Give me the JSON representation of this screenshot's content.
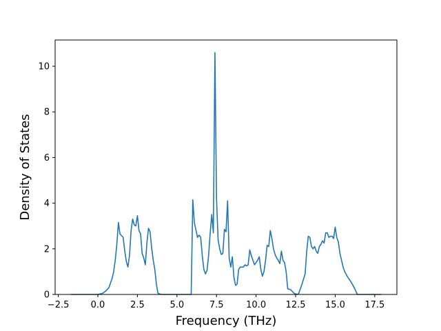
{
  "chart_data": {
    "type": "line",
    "title": "",
    "xlabel": "Frequency (THz)",
    "ylabel": "Density of States",
    "xlim": [
      -2.7,
      18.9
    ],
    "ylim": [
      0,
      11.15
    ],
    "grid": false,
    "legend": "none",
    "x_ticks": [
      -2.5,
      0.0,
      2.5,
      5.0,
      7.5,
      10.0,
      12.5,
      15.0,
      17.5
    ],
    "x_tick_labels": [
      "−2.5",
      "0.0",
      "2.5",
      "5.0",
      "7.5",
      "10.0",
      "12.5",
      "15.0",
      "17.5"
    ],
    "y_ticks": [
      0,
      2,
      4,
      6,
      8,
      10
    ],
    "y_tick_labels": [
      "0",
      "2",
      "4",
      "6",
      "8",
      "10"
    ],
    "series": [
      {
        "name": "",
        "color": "#1f77b4",
        "x": [
          -1.7,
          -0.4,
          0.0,
          0.3,
          0.5,
          0.7,
          0.9,
          1.0,
          1.1,
          1.2,
          1.3,
          1.4,
          1.6,
          1.7,
          1.8,
          1.9,
          2.0,
          2.1,
          2.2,
          2.3,
          2.4,
          2.5,
          2.6,
          2.7,
          2.8,
          2.9,
          3.0,
          3.1,
          3.2,
          3.3,
          3.4,
          3.5,
          3.6,
          3.7,
          3.8,
          4.0,
          5.9,
          6.0,
          6.1,
          6.3,
          6.4,
          6.5,
          6.6,
          6.7,
          6.8,
          6.9,
          7.0,
          7.1,
          7.2,
          7.3,
          7.4,
          7.5,
          7.6,
          7.7,
          7.8,
          7.9,
          8.0,
          8.1,
          8.2,
          8.3,
          8.4,
          8.5,
          8.6,
          8.7,
          8.8,
          8.9,
          9.0,
          9.1,
          9.2,
          9.3,
          9.4,
          9.5,
          9.6,
          9.7,
          9.8,
          9.9,
          10.0,
          10.1,
          10.2,
          10.3,
          10.4,
          10.5,
          10.6,
          10.7,
          10.8,
          10.9,
          11.0,
          11.1,
          11.2,
          11.3,
          11.4,
          11.5,
          11.6,
          11.7,
          11.8,
          11.9,
          12.0,
          12.2,
          12.4,
          12.6,
          12.7,
          12.9,
          13.1,
          13.2,
          13.3,
          13.4,
          13.5,
          13.6,
          13.7,
          13.8,
          13.9,
          14.0,
          14.1,
          14.2,
          14.3,
          14.4,
          14.5,
          14.6,
          14.7,
          14.8,
          14.9,
          15.0,
          15.1,
          15.2,
          15.3,
          15.4,
          15.5,
          15.6,
          15.8,
          16.0,
          16.2,
          16.4,
          16.7,
          17.0,
          17.9
        ],
        "y": [
          0,
          0,
          0,
          0.05,
          0.15,
          0.3,
          0.7,
          1.0,
          1.5,
          2.2,
          3.15,
          2.65,
          2.5,
          1.9,
          1.45,
          1.2,
          1.7,
          2.8,
          3.3,
          3.05,
          3.0,
          3.45,
          2.8,
          2.65,
          1.8,
          1.6,
          1.3,
          2.25,
          2.9,
          2.75,
          2.05,
          1.5,
          1.1,
          0.45,
          0.05,
          0,
          0,
          4.15,
          3.15,
          2.5,
          2.6,
          2.5,
          1.7,
          1.1,
          0.9,
          1.05,
          1.7,
          2.7,
          3.5,
          2.7,
          10.6,
          4.2,
          2.4,
          2.0,
          1.75,
          1.8,
          2.85,
          2.75,
          4.1,
          1.6,
          1.2,
          1.65,
          0.75,
          0.4,
          0.45,
          1.1,
          1.2,
          1.2,
          1.2,
          1.3,
          1.25,
          1.3,
          1.95,
          1.7,
          1.5,
          1.3,
          1.4,
          1.5,
          1.65,
          1.1,
          0.8,
          1.0,
          1.5,
          2.15,
          2.1,
          2.8,
          2.45,
          2.0,
          1.75,
          1.6,
          1.5,
          1.35,
          1.9,
          1.5,
          1.4,
          1.0,
          0.25,
          0.2,
          0.05,
          0,
          0.05,
          0.45,
          0.9,
          1.9,
          2.55,
          2.5,
          2.1,
          2.0,
          2.1,
          1.9,
          1.8,
          2.1,
          2.2,
          2.35,
          2.25,
          2.7,
          2.7,
          2.5,
          2.55,
          2.55,
          2.45,
          2.95,
          2.5,
          2.3,
          1.8,
          1.5,
          1.2,
          1.0,
          0.75,
          0.55,
          0.3,
          0,
          0,
          0,
          0
        ]
      }
    ]
  }
}
